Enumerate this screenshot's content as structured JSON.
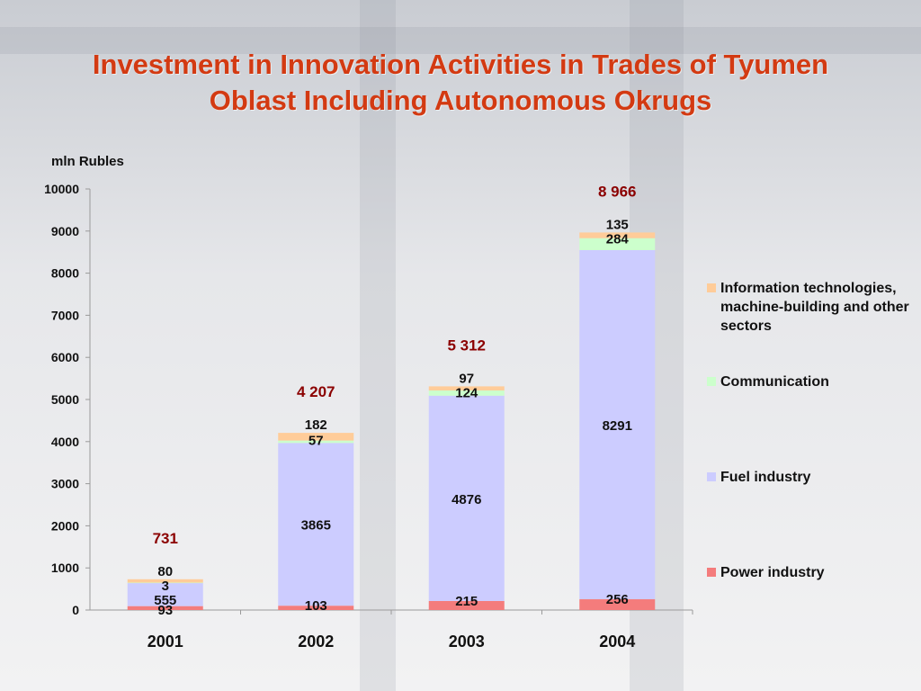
{
  "slide": {
    "title_line1": "Investment in Innovation Activities in Trades of Tyumen",
    "title_line2": "Oblast  Including Autonomous Okrugs"
  },
  "colors": {
    "title": "#d33a12",
    "total_label": "#8b0000",
    "axis": "#9a9a9a"
  },
  "chart_data": {
    "type": "bar",
    "stacked": true,
    "title": "Investment in Innovation Activities in Trades of Tyumen Oblast  Including Autonomous Okrugs",
    "ylabel": "mln Rubles",
    "xlabel": "",
    "ylim": [
      0,
      10000
    ],
    "yticks": [
      0,
      1000,
      2000,
      3000,
      4000,
      5000,
      6000,
      7000,
      8000,
      9000,
      10000
    ],
    "categories": [
      "2001",
      "2002",
      "2003",
      "2004"
    ],
    "series": [
      {
        "name": "Power industry",
        "color": "#f47c7c",
        "values": [
          93,
          103,
          215,
          256
        ]
      },
      {
        "name": "Fuel industry",
        "color": "#ccccff",
        "values": [
          555,
          3865,
          4876,
          8291
        ]
      },
      {
        "name": "Communication",
        "color": "#ccffcc",
        "values": [
          3,
          57,
          124,
          284
        ]
      },
      {
        "name": "Information technologies, machine-building and other sectors",
        "color": "#ffcc99",
        "values": [
          80,
          182,
          97,
          135
        ]
      }
    ],
    "totals": [
      "731",
      "4 207",
      "5 312",
      "8 966"
    ],
    "legend_position": "right",
    "grid": false
  }
}
